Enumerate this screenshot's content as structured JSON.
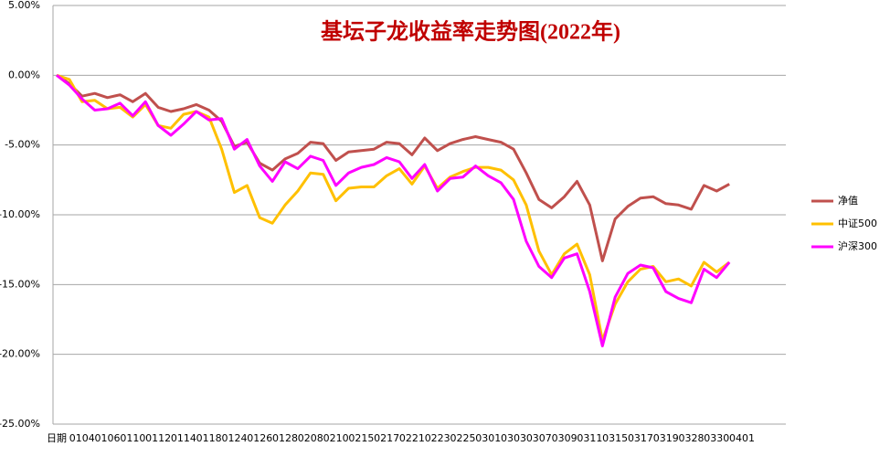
{
  "chart_data": {
    "type": "line",
    "title": "基坛子龙收益率走势图(2022年)",
    "categories": [
      "日期",
      null,
      "0104",
      null,
      "0106",
      null,
      "0110",
      null,
      "0112",
      null,
      "0114",
      null,
      "0118",
      null,
      "0124",
      null,
      "0126",
      null,
      "0128",
      null,
      "0208",
      null,
      "0210",
      null,
      "0215",
      null,
      "0217",
      null,
      "0221",
      null,
      "0223",
      null,
      "0225",
      null,
      "0301",
      null,
      "0303",
      null,
      "0307",
      null,
      "0309",
      null,
      "0311",
      null,
      "0315",
      null,
      "0317",
      null,
      "0319",
      null,
      "0328",
      null,
      "0330",
      null,
      "0401"
    ],
    "series": [
      {
        "name": "净值",
        "color": "#c0504d",
        "values": [
          0,
          -0.6,
          -1.5,
          -1.3,
          -1.6,
          -1.4,
          -1.9,
          -1.3,
          -2.3,
          -2.6,
          -2.4,
          -2.1,
          -2.5,
          -3.3,
          -5.1,
          -4.8,
          -6.3,
          -6.8,
          -6.0,
          -5.6,
          -4.8,
          -4.9,
          -6.1,
          -5.5,
          -5.4,
          -5.3,
          -4.8,
          -4.9,
          -5.7,
          -4.5,
          -5.4,
          -4.9,
          -4.6,
          -4.4,
          -4.6,
          -4.8,
          -5.3,
          -7.0,
          -8.9,
          -9.5,
          -8.7,
          -7.6,
          -9.3,
          -13.3,
          -10.3,
          -9.4,
          -8.8,
          -8.7,
          -9.2,
          -9.3,
          -9.6,
          -7.9,
          -8.3,
          -7.8,
          null
        ]
      },
      {
        "name": "中证500",
        "color": "#ffc000",
        "values": [
          0,
          -0.3,
          -1.9,
          -1.8,
          -2.4,
          -2.3,
          -3.0,
          -2.1,
          -3.6,
          -3.8,
          -2.8,
          -2.6,
          -3.0,
          -5.3,
          -8.4,
          -7.9,
          -10.2,
          -10.6,
          -9.3,
          -8.3,
          -7.0,
          -7.1,
          -9.0,
          -8.1,
          -8.0,
          -8.0,
          -7.2,
          -6.7,
          -7.8,
          -6.5,
          -8.1,
          -7.3,
          -6.9,
          -6.6,
          -6.6,
          -6.8,
          -7.5,
          -9.3,
          -12.6,
          -14.3,
          -12.8,
          -12.1,
          -14.3,
          -19.0,
          -16.4,
          -14.8,
          -13.9,
          -13.7,
          -14.8,
          -14.6,
          -15.1,
          -13.4,
          -14.1,
          -13.4,
          null
        ]
      },
      {
        "name": "沪深300",
        "color": "#ff00ff",
        "values": [
          0,
          -0.7,
          -1.7,
          -2.5,
          -2.4,
          -2.0,
          -2.9,
          -1.9,
          -3.6,
          -4.3,
          -3.5,
          -2.6,
          -3.2,
          -3.1,
          -5.3,
          -4.6,
          -6.5,
          -7.6,
          -6.2,
          -6.7,
          -5.8,
          -6.1,
          -7.9,
          -7.0,
          -6.6,
          -6.4,
          -5.9,
          -6.2,
          -7.4,
          -6.4,
          -8.3,
          -7.4,
          -7.3,
          -6.5,
          -7.2,
          -7.7,
          -8.9,
          -11.9,
          -13.7,
          -14.5,
          -13.1,
          -12.8,
          -15.5,
          -19.4,
          -15.9,
          -14.2,
          -13.6,
          -13.8,
          -15.5,
          -16.0,
          -16.3,
          -13.9,
          -14.5,
          -13.4,
          null
        ]
      }
    ],
    "ylim": [
      -25,
      5
    ],
    "yticks": [
      {
        "value": 5,
        "label": "5.00%"
      },
      {
        "value": 0,
        "label": "0.00%"
      },
      {
        "value": -5,
        "label": "-5.00%"
      },
      {
        "value": -10,
        "label": "-10.00%"
      },
      {
        "value": -15,
        "label": "-15.00%"
      },
      {
        "value": -20,
        "label": "-20.00%"
      },
      {
        "value": -25,
        "label": "-25.00%"
      }
    ],
    "grid": true,
    "legend": "right"
  }
}
